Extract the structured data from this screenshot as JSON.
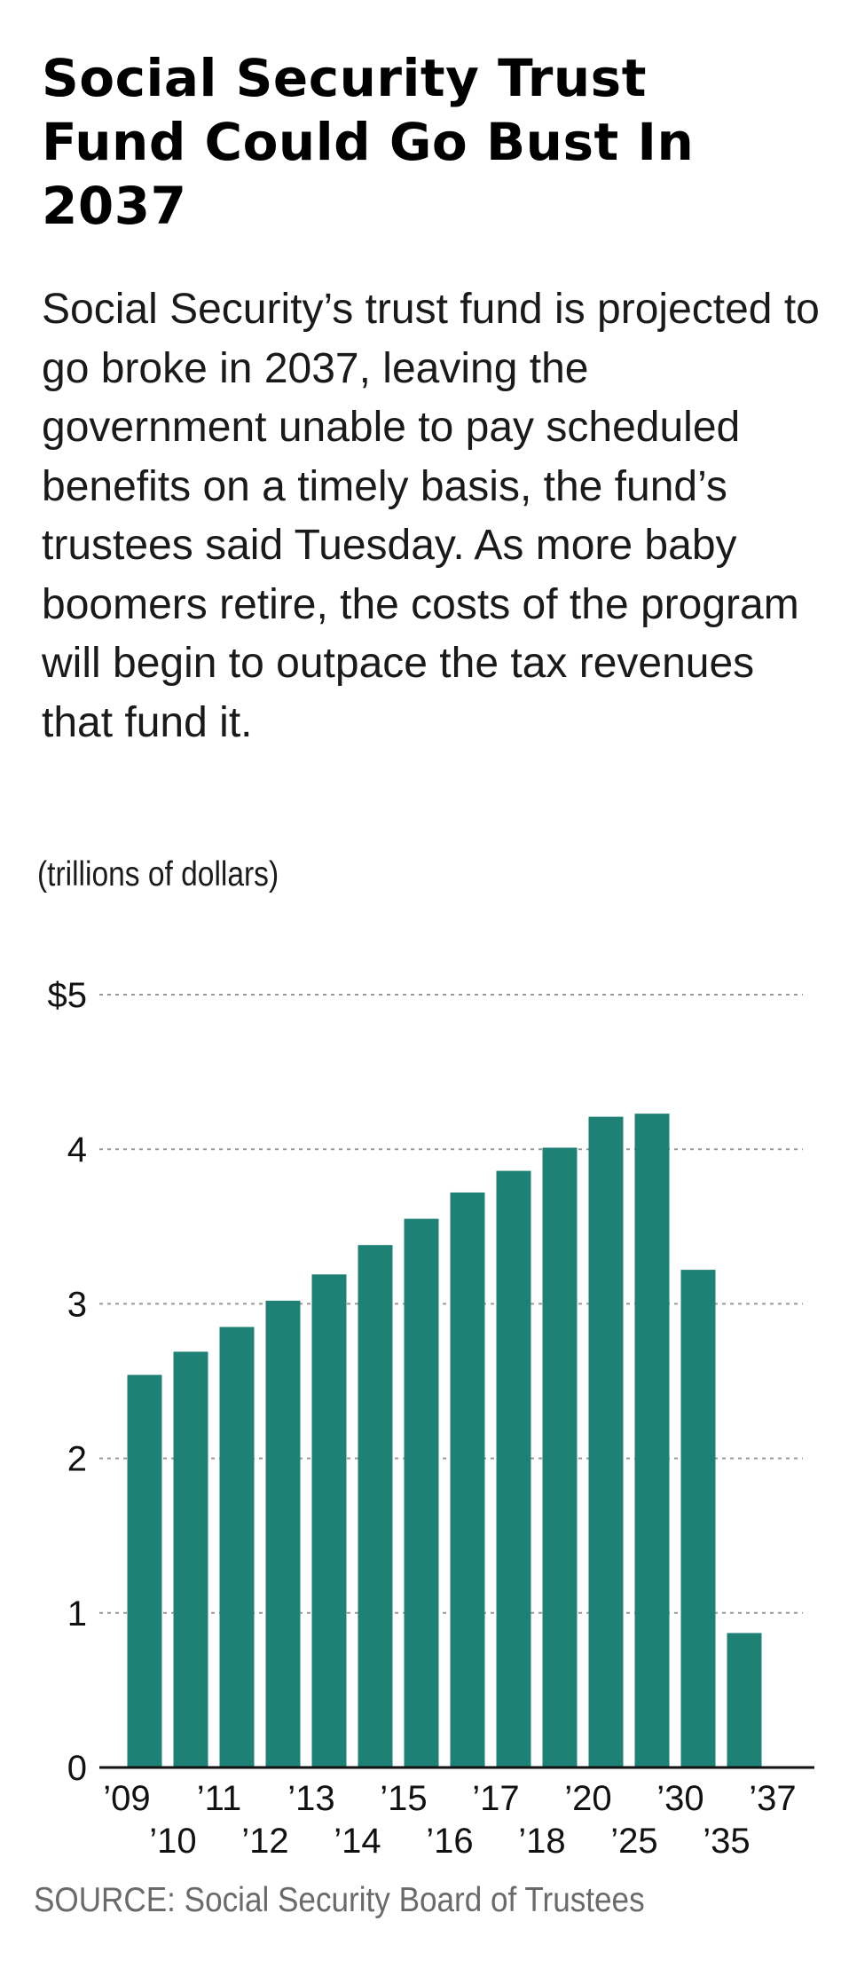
{
  "headline": "Social Security Trust Fund Could Go Bust In 2037",
  "chatter": "Social Security’s trust fund is projected to go broke in 2037, leaving the government unable to pay scheduled benefits on a timely basis, the fund’s trustees said Tuesday. As more baby boomers retire, the costs of the program will begin to outpace the tax revenues that fund it.",
  "unit_label": "(trillions of dollars)",
  "source": "SOURCE:  Social Security Board of Trustees",
  "colors": {
    "bar": "#1f8176",
    "gridline": "#999999",
    "axis": "#111111"
  },
  "chart_data": {
    "type": "bar",
    "categories": [
      "’09",
      "’10",
      "’11",
      "’12",
      "’13",
      "’14",
      "’15",
      "’16",
      "’17",
      "’18",
      "’20",
      "’25",
      "’30",
      "’35",
      "’37"
    ],
    "values": [
      2.54,
      2.69,
      2.85,
      3.02,
      3.19,
      3.38,
      3.55,
      3.72,
      3.86,
      4.01,
      4.21,
      4.23,
      3.22,
      0.87,
      0
    ],
    "ylim": [
      0,
      5
    ],
    "yticks": [
      0,
      1,
      2,
      3,
      4,
      5
    ],
    "ytick_labels": [
      "0",
      "1",
      "2",
      "3",
      "4",
      "$5"
    ],
    "title": "",
    "xlabel": "",
    "ylabel": "(trillions of dollars)",
    "grid": true
  }
}
